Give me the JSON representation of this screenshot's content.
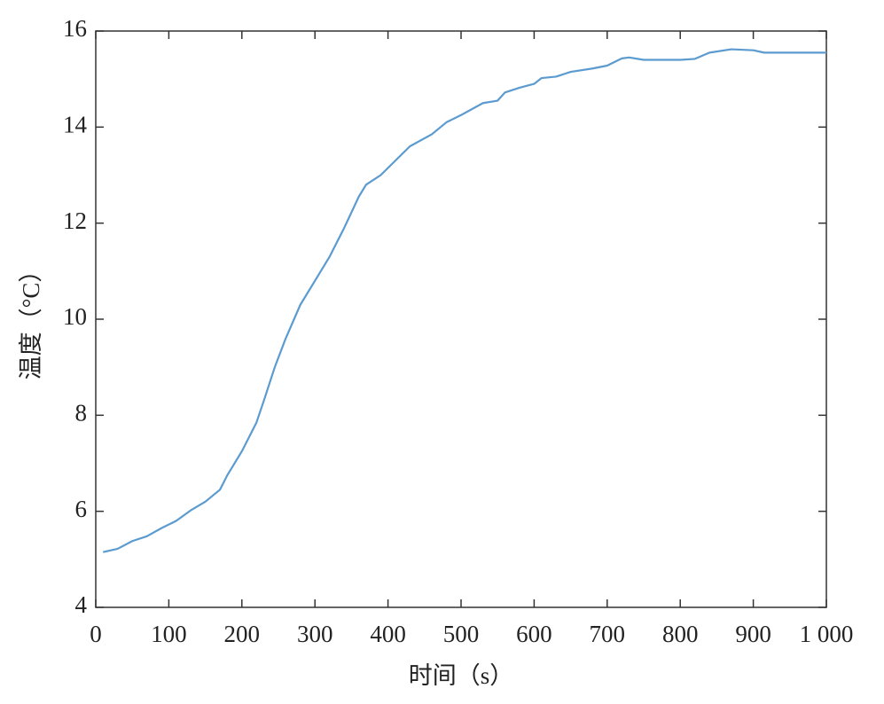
{
  "chart_data": {
    "type": "line",
    "xlabel": "时间（s）",
    "ylabel": "温度（°C）",
    "x": [
      10,
      30,
      50,
      70,
      90,
      110,
      130,
      150,
      170,
      180,
      200,
      220,
      230,
      245,
      260,
      280,
      300,
      320,
      340,
      360,
      370,
      390,
      410,
      430,
      460,
      480,
      500,
      530,
      550,
      560,
      580,
      600,
      610,
      630,
      650,
      680,
      700,
      720,
      730,
      750,
      800,
      820,
      840,
      870,
      900,
      915,
      960,
      1000
    ],
    "series": [
      {
        "color": "#5b9bd0",
        "values": [
          5.15,
          5.22,
          5.38,
          5.48,
          5.65,
          5.8,
          6.02,
          6.2,
          6.45,
          6.75,
          7.25,
          7.85,
          8.3,
          9.0,
          9.6,
          10.3,
          10.8,
          11.3,
          11.9,
          12.55,
          12.8,
          13.0,
          13.3,
          13.6,
          13.85,
          14.1,
          14.25,
          14.5,
          14.55,
          14.72,
          14.82,
          14.9,
          15.02,
          15.05,
          15.15,
          15.22,
          15.28,
          15.43,
          15.45,
          15.4,
          15.4,
          15.42,
          15.55,
          15.62,
          15.6,
          15.55,
          15.55,
          15.55
        ]
      }
    ],
    "xlim": [
      0,
      1000
    ],
    "xticks": [
      0,
      100,
      200,
      300,
      400,
      500,
      600,
      700,
      800,
      900,
      {
        "value": 1000,
        "label": "1 000"
      }
    ],
    "ylim": [
      4,
      16
    ],
    "yticks": [
      4,
      6,
      8,
      10,
      12,
      14,
      16
    ]
  }
}
